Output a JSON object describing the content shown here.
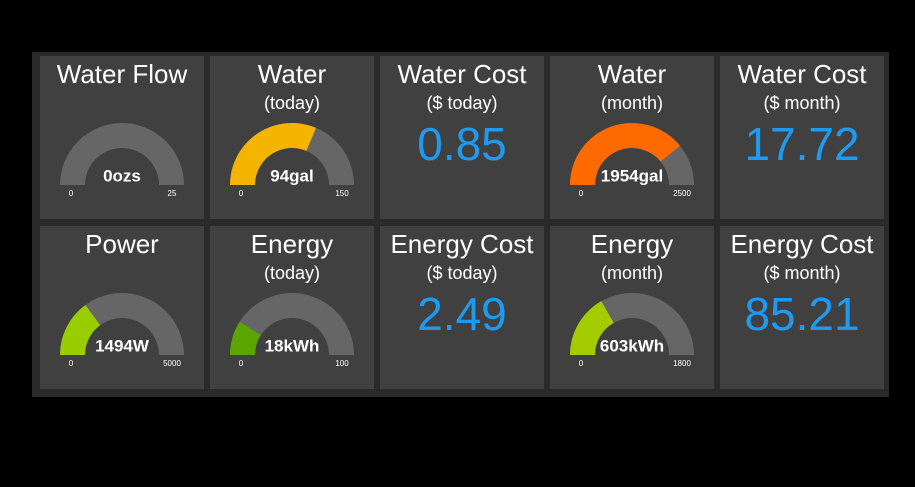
{
  "tiles": [
    {
      "title": "Water Flow",
      "gauge": {
        "value": 0,
        "label": "0ozs",
        "min": 0,
        "max": 25,
        "color": "#f5b400"
      }
    },
    {
      "title": "Water",
      "subtitle": "(today)",
      "gauge": {
        "value": 94,
        "label": "94gal",
        "min": 0,
        "max": 150,
        "color": "#f5b400"
      }
    },
    {
      "title": "Water Cost",
      "subtitle": "($ today)",
      "number": 0.85
    },
    {
      "title": "Water",
      "subtitle": "(month)",
      "gauge": {
        "value": 1954,
        "label": "1954gal",
        "min": 0,
        "max": 2500,
        "color": "#ff6a00"
      }
    },
    {
      "title": "Water Cost",
      "subtitle": "($ month)",
      "number": 17.72
    },
    {
      "title": "Power",
      "gauge": {
        "value": 1494,
        "label": "1494W",
        "min": 0,
        "max": 5000,
        "color": "#9acd00"
      }
    },
    {
      "title": "Energy",
      "subtitle": "(today)",
      "gauge": {
        "value": 18,
        "label": "18kWh",
        "min": 0,
        "max": 100,
        "color": "#5aa500"
      }
    },
    {
      "title": "Energy Cost",
      "subtitle": "($ today)",
      "number": 2.49
    },
    {
      "title": "Energy",
      "subtitle": "(month)",
      "gauge": {
        "value": 603,
        "label": "603kWh",
        "min": 0,
        "max": 1800,
        "color": "#a3cc00"
      }
    },
    {
      "title": "Energy Cost",
      "subtitle": "($ month)",
      "number": 85.21
    }
  ]
}
